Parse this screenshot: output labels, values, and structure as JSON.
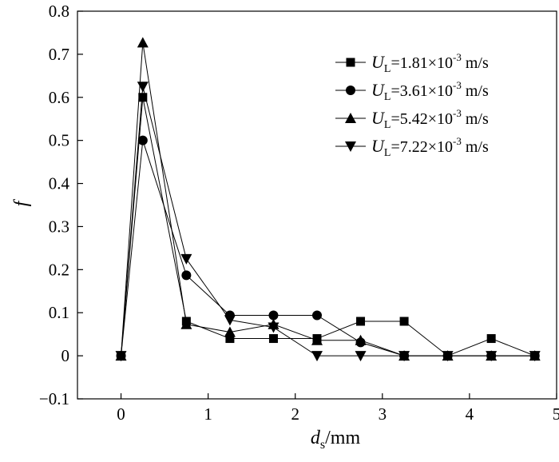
{
  "chart_data": {
    "type": "line",
    "xlabel": {
      "main": "d",
      "sub": "s",
      "rest": "/mm"
    },
    "ylabel": "f",
    "xlim": [
      -0.5,
      5
    ],
    "ylim": [
      -0.1,
      0.8
    ],
    "xticks": [
      0,
      1,
      2,
      3,
      4,
      5
    ],
    "xtick_labels": [
      "0",
      "1",
      "2",
      "3",
      "4",
      "5"
    ],
    "yticks": [
      -0.1,
      0,
      0.1,
      0.2,
      0.3,
      0.4,
      0.5,
      0.6,
      0.7,
      0.8
    ],
    "ytick_labels": [
      "−0.1",
      "0",
      "0.1",
      "0.2",
      "0.3",
      "0.4",
      "0.5",
      "0.6",
      "0.7",
      "0.8"
    ],
    "grid": false,
    "legend_position": "top-right",
    "x": [
      0,
      0.25,
      0.75,
      1.25,
      1.75,
      2.25,
      2.75,
      3.25,
      3.75,
      4.25,
      4.75
    ],
    "series": [
      {
        "legend": {
          "var": "U",
          "sub": "L",
          "pre": "=1.81×10",
          "exp": "-3",
          "unit": " m/s"
        },
        "marker": "square",
        "values": [
          0,
          0.6,
          0.08,
          0.04,
          0.04,
          0.04,
          0.08,
          0.08,
          0,
          0.04,
          0
        ]
      },
      {
        "legend": {
          "var": "U",
          "sub": "L",
          "pre": "=3.61×10",
          "exp": "-3",
          "unit": " m/s"
        },
        "marker": "circle",
        "values": [
          0,
          0.5,
          0.187,
          0.094,
          0.094,
          0.094,
          0.031,
          0,
          0,
          0,
          0
        ]
      },
      {
        "legend": {
          "var": "U",
          "sub": "L",
          "pre": "=5.42×10",
          "exp": "-3",
          "unit": " m/s"
        },
        "marker": "triangle-up",
        "values": [
          0,
          0.727,
          0.073,
          0.055,
          0.073,
          0.036,
          0.036,
          0,
          0,
          0,
          0
        ]
      },
      {
        "legend": {
          "var": "U",
          "sub": "L",
          "pre": "=7.22×10",
          "exp": "-3",
          "unit": " m/s"
        },
        "marker": "triangle-down",
        "values": [
          0,
          0.625,
          0.225,
          0.083,
          0.066,
          0,
          0,
          0,
          0,
          0,
          0
        ]
      }
    ]
  }
}
